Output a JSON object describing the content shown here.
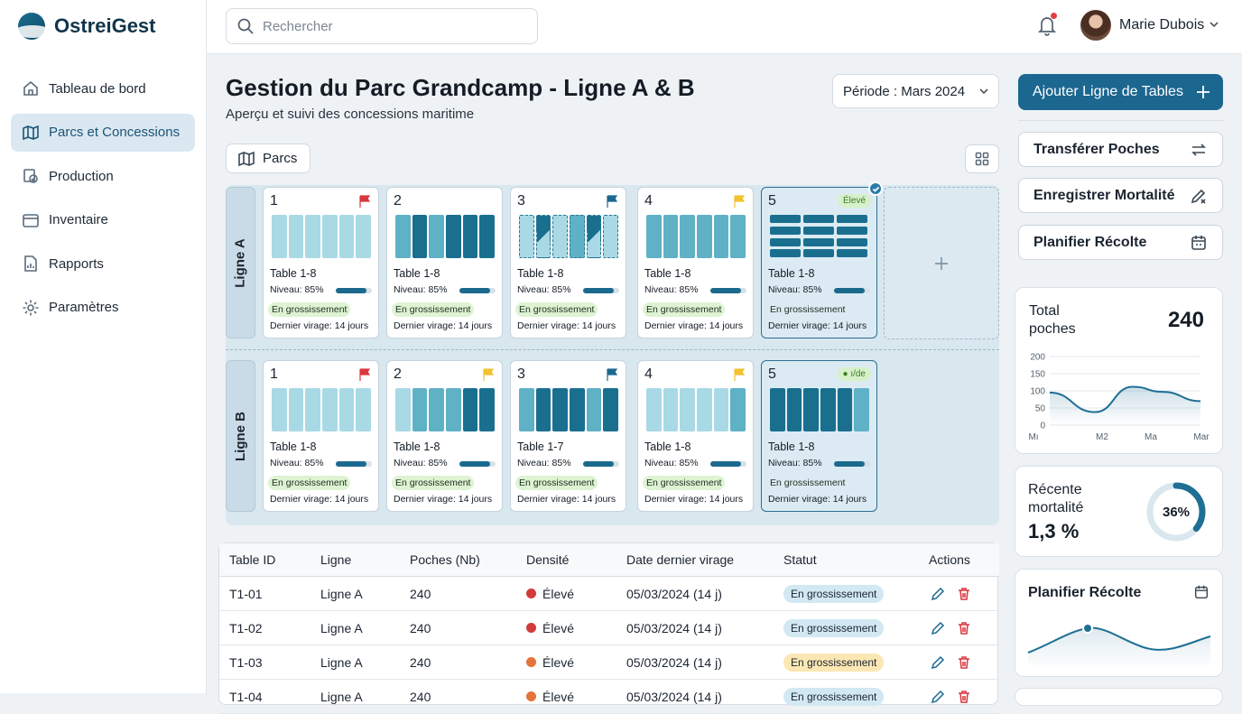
{
  "app": {
    "name": "OstreiGest"
  },
  "sidebar": {
    "items": [
      {
        "label": "Tableau de bord",
        "icon": "home-icon",
        "active": false
      },
      {
        "label": "Parcs et Concessions",
        "icon": "map-icon",
        "active": true
      },
      {
        "label": "Production",
        "icon": "production-icon",
        "active": false
      },
      {
        "label": "Inventaire",
        "icon": "box-icon",
        "active": false
      },
      {
        "label": "Rapports",
        "icon": "report-icon",
        "active": false
      },
      {
        "label": "Paramètres",
        "icon": "gear-icon",
        "active": false
      }
    ]
  },
  "header": {
    "search_placeholder": "Rechercher",
    "user_name": "Marie Dubois",
    "notification_dot": true
  },
  "page": {
    "title": "Gestion du Parc Grandcamp - Ligne A & B",
    "subtitle": "Aperçu et suivi des concessions maritime",
    "period": "Période : Mars 2024",
    "parcs_button": "Parcs"
  },
  "board": {
    "lines": [
      {
        "label": "Ligne A",
        "tables": [
          {
            "num": "1",
            "flag": "red",
            "title": "Table 1-8",
            "level": "Niveau: 85%",
            "level_pct": 85,
            "status": "En grossissement",
            "last_turn": "Dernier virage: 14 jours"
          },
          {
            "num": "2",
            "flag": "none",
            "title": "Table 1-8",
            "level": "Niveau: 85%",
            "level_pct": 85,
            "status": "En grossissement",
            "last_turn": "Dernier virage: 14 jours"
          },
          {
            "num": "3",
            "flag": "teal",
            "title": "Table 1-8",
            "level": "Niveau: 85%",
            "level_pct": 85,
            "status": "En grossissement",
            "last_turn": "Dernier virage: 14 jours"
          },
          {
            "num": "4",
            "flag": "yellow",
            "title": "Table 1-8",
            "level": "Niveau: 85%",
            "level_pct": 85,
            "status": "En grossissement",
            "last_turn": "Dernier virage: 14 jours"
          },
          {
            "num": "5",
            "tag": "Élevé",
            "title": "Table 1-8",
            "level": "Niveau: 85%",
            "level_pct": 85,
            "status": "En grossissement",
            "last_turn": "Dernier virage: 14 jours",
            "selected": true
          }
        ]
      },
      {
        "label": "Ligne B",
        "tables": [
          {
            "num": "1",
            "flag": "red",
            "title": "Table 1-8",
            "level": "Niveau: 85%",
            "level_pct": 85,
            "status": "En grossissement",
            "last_turn": "Dernier virage: 14 jours"
          },
          {
            "num": "2",
            "flag": "yellow",
            "title": "Table 1-8",
            "level": "Niveau: 85%",
            "level_pct": 85,
            "status": "En grossissement",
            "last_turn": "Dernier virage: 14 jours"
          },
          {
            "num": "3",
            "flag": "teal",
            "title": "Table 1-7",
            "level": "Niveau: 85%",
            "level_pct": 85,
            "status": "En grossissement",
            "last_turn": "Dernier virage: 14 jours"
          },
          {
            "num": "4",
            "flag": "yellow",
            "title": "Table 1-8",
            "level": "Niveau: 85%",
            "level_pct": 85,
            "status": "En grossissement",
            "last_turn": "Dernier virage: 14 jours"
          },
          {
            "num": "5",
            "tag": "● ı/de",
            "title": "Table 1-8",
            "level": "Niveau: 85%",
            "level_pct": 85,
            "status": "En grossissement",
            "last_turn": "Dernier virage: 14 jours",
            "selected": true
          }
        ]
      }
    ]
  },
  "table": {
    "columns": [
      "Table ID",
      "Ligne",
      "Poches (Nb)",
      "Densité",
      "Date dernier virage",
      "Statut",
      "Actions"
    ],
    "rows": [
      {
        "id": "T1-01",
        "line": "Ligne A",
        "bags": "240",
        "density": "Élevé",
        "density_color": "#d23b3b",
        "date": "05/03/2024 (14 j)",
        "status": "En grossissement",
        "status_color": "#d2e8f2"
      },
      {
        "id": "T1-02",
        "line": "Ligne A",
        "bags": "240",
        "density": "Élevé",
        "density_color": "#d23b3b",
        "date": "05/03/2024 (14 j)",
        "status": "En grossissement",
        "status_color": "#d2e8f2"
      },
      {
        "id": "T1-03",
        "line": "Ligne A",
        "bags": "240",
        "density": "Élevé",
        "density_color": "#e4733c",
        "date": "05/03/2024 (14 j)",
        "status": "En grossissement",
        "status_color": "#fbe7b3"
      },
      {
        "id": "T1-04",
        "line": "Ligne A",
        "bags": "240",
        "density": "Élevé",
        "density_color": "#e4733c",
        "date": "05/03/2024 (14 j)",
        "status": "En grossissement",
        "status_color": "#d2e8f2"
      }
    ]
  },
  "actions": {
    "primary": "Ajouter Ligne de Tables",
    "transfer": "Transférer Poches",
    "mortality": "Enregistrer Mortalité",
    "harvest": "Planifier Récolte"
  },
  "stats": {
    "total_label": "Total\npoches",
    "total_value": "240",
    "mortality_label": "Récente\nmortalité",
    "mortality_value": "1,3 %",
    "mortality_ring": "36%",
    "mortality_ring_pct": 36,
    "harvest_title": "Planifier Récolte"
  },
  "chart_data": {
    "type": "area",
    "categories": [
      "Mı",
      "M2",
      "Ma",
      "Mar"
    ],
    "yticks": [
      "200",
      "150",
      "100",
      "50",
      "0"
    ],
    "ylim": [
      0,
      200
    ],
    "x": [
      0,
      0.3,
      0.55,
      0.75,
      1
    ],
    "values": [
      95,
      38,
      112,
      97,
      70
    ]
  },
  "colors": {
    "accent": "#1c6790",
    "tray_light": "#a9d9e5",
    "tray_mid": "#5fb1c6",
    "tray_dark": "#1a6f8f"
  }
}
